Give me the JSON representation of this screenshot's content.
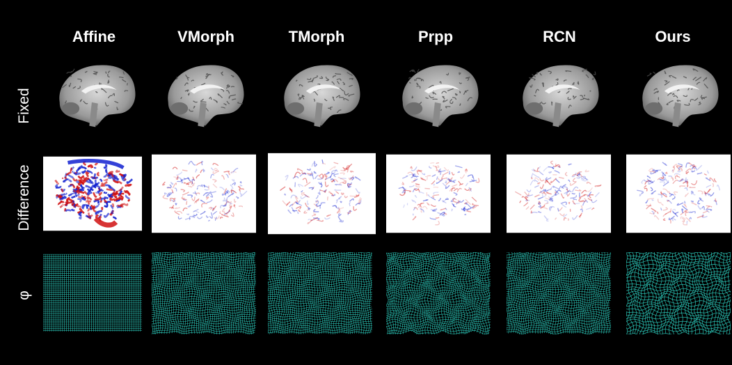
{
  "columns": [
    "Affine",
    "VMorph",
    "TMorph",
    "Prpp",
    "RCN",
    "Ours"
  ],
  "rows": [
    "Fixed",
    "Difference",
    "φ"
  ],
  "colors": {
    "background": "#000000",
    "grid": "#2fd6c6",
    "diff_positive": "#d01010",
    "diff_negative": "#1020d0",
    "brain_gray": "#9a9a9a"
  }
}
